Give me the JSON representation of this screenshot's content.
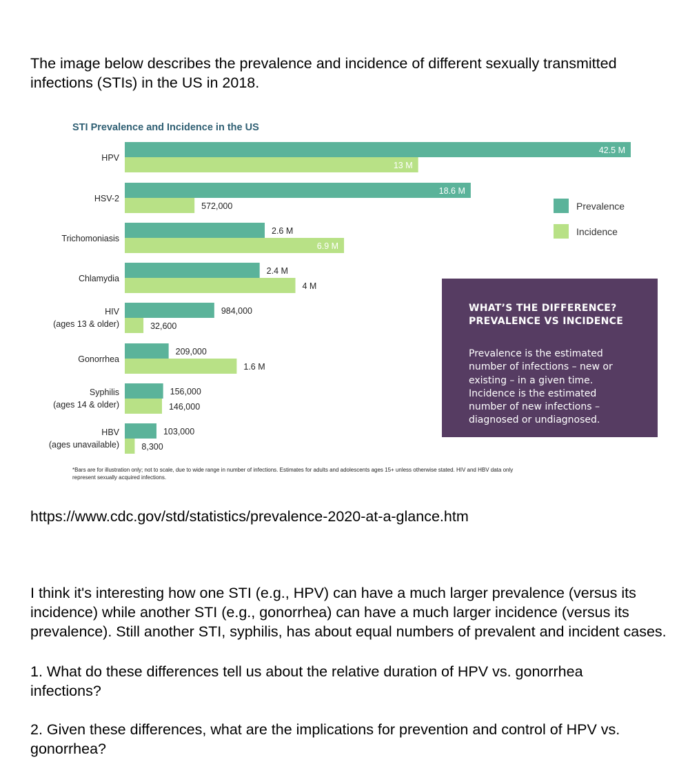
{
  "intro": "The image below describes the prevalence and incidence of different sexually transmitted infections (STIs) in the US in 2018.",
  "chart_data": {
    "type": "bar",
    "orientation": "horizontal",
    "title": "STI Prevalence and Incidence in the US",
    "categories": [
      {
        "name": "HPV",
        "sub": ""
      },
      {
        "name": "HSV-2",
        "sub": ""
      },
      {
        "name": "Trichomoniasis",
        "sub": ""
      },
      {
        "name": "Chlamydia",
        "sub": ""
      },
      {
        "name": "HIV",
        "sub": "(ages 13 & older)"
      },
      {
        "name": "Gonorrhea",
        "sub": ""
      },
      {
        "name": "Syphilis",
        "sub": "(ages 14 & older)"
      },
      {
        "name": "HBV",
        "sub": "(ages unavailable)"
      }
    ],
    "series": [
      {
        "name": "Prevalence",
        "color": "#5bb39a",
        "values": [
          42500000,
          18600000,
          2600000,
          2400000,
          984000,
          209000,
          156000,
          103000
        ],
        "labels": [
          "42.5 M",
          "18.6 M",
          "2.6 M",
          "2.4 M",
          "984,000",
          "209,000",
          "156,000",
          "103,000"
        ]
      },
      {
        "name": "Incidence",
        "color": "#b8e186",
        "values": [
          13000000,
          572000,
          6900000,
          4000000,
          32600,
          1600000,
          146000,
          8300
        ],
        "labels": [
          "13 M",
          "572,000",
          "6.9 M",
          "4 M",
          "32,600",
          "1.6 M",
          "146,000",
          "8,300"
        ]
      }
    ],
    "scale_note": "not to scale",
    "footnote_line1": "*Bars are for illustration only; not to scale, due to wide range in number of infections. Estimates for adults and adolescents ages 15+ unless otherwise stated. HIV and HBV data only",
    "footnote_line2": "represent sexually acquired infections."
  },
  "callout": {
    "heading_line1": "WHAT’S THE DIFFERENCE?",
    "heading_line2": "PREVALENCE VS INCIDENCE",
    "body": "Prevalence is the estimated number of infections – new or existing – in a given time. Incidence is the estimated number of new infections – diagnosed or undiagnosed."
  },
  "url": "https://www.cdc.gov/std/statistics/prevalence-2020-at-a-glance.htm",
  "observation": "I think it's interesting how one STI (e.g., HPV) can have a much larger prevalence (versus its incidence) while another STI (e.g., gonorrhea) can have a much larger incidence (versus its prevalence). Still another STI, syphilis, has about equal numbers of prevalent and incident cases.",
  "question1": "1. What do these differences tell us about the relative duration of HPV vs. gonorrhea infections?",
  "question2": "2. Given these differences, what are the implications for prevention and control of HPV vs. gonorrhea?"
}
